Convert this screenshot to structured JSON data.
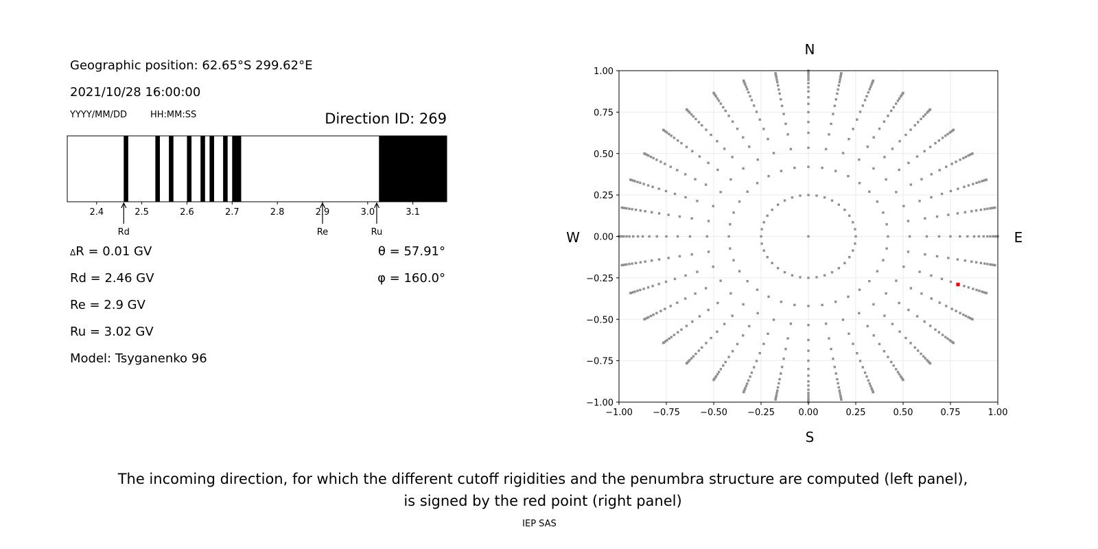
{
  "header": {
    "geo_position": "Geographic position: 62.65°S 299.62°E",
    "datetime": "2021/10/28 16:00:00",
    "date_format": "YYYY/MM/DD",
    "time_format": "HH:MM:SS",
    "direction_id": "Direction ID: 269"
  },
  "values": {
    "delta_r": "R = 0.01 GV",
    "delta_symbol": "Δ",
    "rd": "Rd = 2.46 GV",
    "re": "Re = 2.9 GV",
    "ru": "Ru = 3.02 GV",
    "model": "Model: Tsyganenko 96",
    "theta": "θ = 57.91°",
    "phi": "φ = 160.0°"
  },
  "caption": {
    "line1": "The incoming direction, for which the different cutoff rigidities and the penumbra structure are computed (left panel),",
    "line2": "is signed by the red point (right panel)",
    "credit": "IEP SAS"
  },
  "chart_data": [
    {
      "type": "penumbra",
      "xlim": [
        2.335,
        3.175
      ],
      "xticks": [
        2.4,
        2.5,
        2.6,
        2.7,
        2.8,
        2.9,
        3.0,
        3.1
      ],
      "tick_labels": [
        "2.4",
        "2.5",
        "2.6",
        "2.7",
        "2.8",
        "2.9",
        "3.0",
        "3.1"
      ],
      "allowed_intervals": [
        [
          2.46,
          2.47
        ],
        [
          2.53,
          2.54
        ],
        [
          2.56,
          2.57
        ],
        [
          2.6,
          2.61
        ],
        [
          2.63,
          2.64
        ],
        [
          2.65,
          2.66
        ],
        [
          2.68,
          2.69
        ],
        [
          2.7,
          2.72
        ],
        [
          3.025,
          3.175
        ]
      ],
      "markers": [
        {
          "label": "Rd",
          "value": 2.46
        },
        {
          "label": "Re",
          "value": 2.9
        },
        {
          "label": "Ru",
          "value": 3.02
        }
      ],
      "colors": {
        "allowed": "#000000",
        "forbidden": "#ffffff"
      }
    },
    {
      "type": "scatter",
      "xlim": [
        -1,
        1
      ],
      "ylim": [
        -1,
        1
      ],
      "ticks": [
        -1,
        -0.75,
        -0.5,
        -0.25,
        0,
        0.25,
        0.5,
        0.75,
        1
      ],
      "tick_labels": [
        "−1.00",
        "−0.75",
        "−0.50",
        "−0.25",
        "0.00",
        "0.25",
        "0.50",
        "0.75",
        "1.00"
      ],
      "grid": true,
      "compass": {
        "N": "N",
        "S": "S",
        "W": "W",
        "E": "E"
      },
      "spoke_step_deg": 10,
      "spoke_radii": [
        0.42,
        0.535,
        0.625,
        0.69,
        0.75,
        0.8,
        0.84,
        0.875,
        0.9,
        0.925,
        0.945,
        0.96,
        0.975,
        0.985,
        0.995,
        1.0
      ],
      "inner_circle_radius": 0.25,
      "inner_circle_step_deg": 10,
      "center_point": [
        0,
        0
      ],
      "selected_point": [
        0.79,
        -0.29
      ],
      "colors": {
        "points": "#909090",
        "selected": "#ff0000"
      }
    }
  ]
}
